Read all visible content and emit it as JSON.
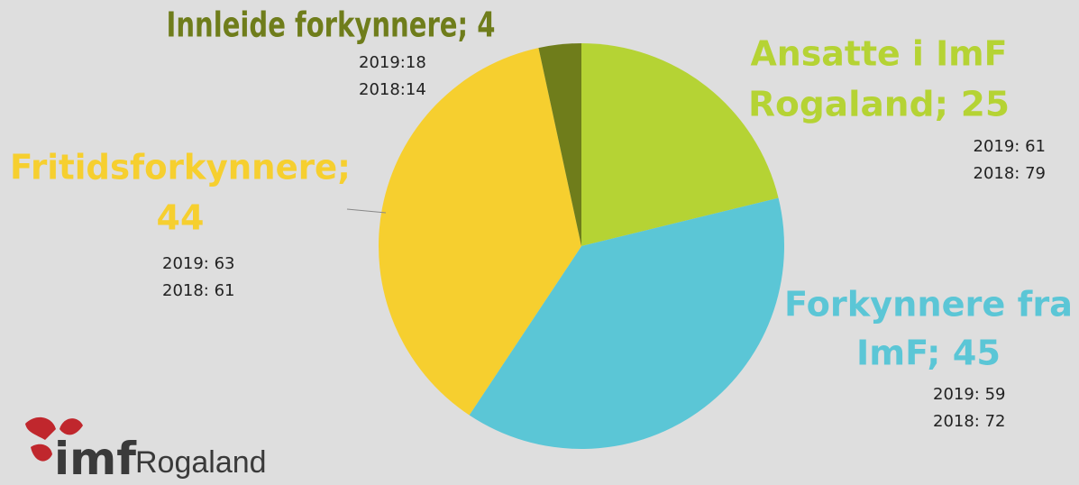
{
  "chart_data": {
    "type": "pie",
    "values": [
      25,
      45,
      44,
      4
    ],
    "value_labels": [
      [
        "Ansatte i ImF",
        "Rogaland; 25"
      ],
      [
        "Forkynnere fra",
        "ImF; 45"
      ],
      [
        "Fritidsforkynnere;",
        "44"
      ],
      [
        "Innleide forkynnere; 4"
      ]
    ],
    "colors": [
      "#b5d334",
      "#5bc6d6",
      "#f6cf2f",
      "#6f7d1b"
    ],
    "annotations": [
      [
        "2019: 61",
        "2018: 79"
      ],
      [
        "2019: 59",
        "2018: 72"
      ],
      [
        "2019: 63",
        "2018: 61"
      ],
      [
        "2019:18",
        "2018:14"
      ]
    ]
  },
  "logo": {
    "mark": "imf",
    "text": "Rogaland"
  }
}
